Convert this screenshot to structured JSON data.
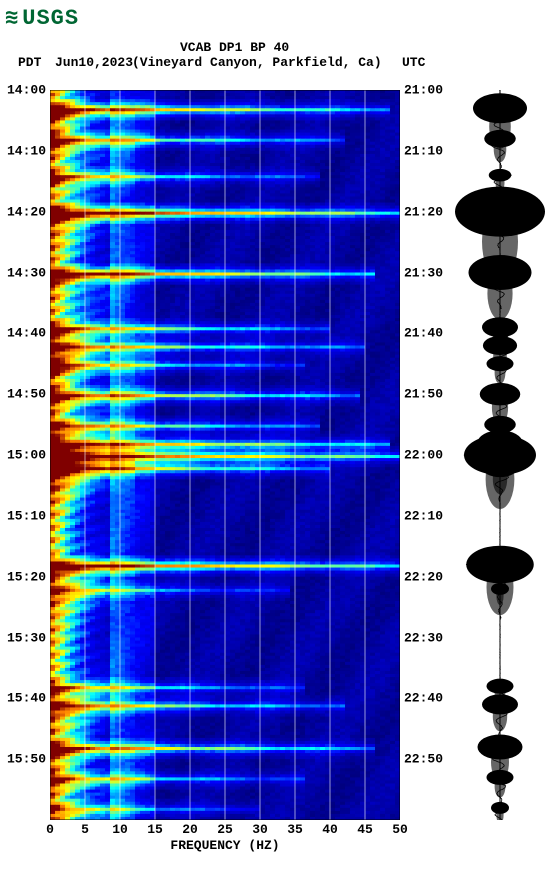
{
  "logo": {
    "text": "USGS"
  },
  "titles": {
    "line1": "VCAB DP1 BP 40",
    "line2_left": "PDT",
    "line2_date": "Jun10,2023",
    "line2_loc": "(Vineyard Canyon, Parkfield, Ca)",
    "line2_right": "UTC"
  },
  "spectrogram": {
    "type": "spectrogram",
    "xlabel": "FREQUENCY (HZ)",
    "xlim": [
      0,
      50
    ],
    "xticks": [
      0,
      5,
      10,
      15,
      20,
      25,
      30,
      35,
      40,
      45,
      50
    ],
    "time_range_min": 120,
    "left_labels": [
      "14:00",
      "14:10",
      "14:20",
      "14:30",
      "14:40",
      "14:50",
      "15:00",
      "15:10",
      "15:20",
      "15:30",
      "15:40",
      "15:50"
    ],
    "right_labels": [
      "21:00",
      "21:10",
      "21:20",
      "21:30",
      "21:40",
      "21:50",
      "22:00",
      "22:10",
      "22:20",
      "22:30",
      "22:40",
      "22:50"
    ],
    "label_positions_min": [
      0,
      10,
      20,
      30,
      40,
      50,
      60,
      70,
      80,
      90,
      100,
      110
    ],
    "events": [
      {
        "t": 3,
        "freq_max": 48,
        "intensity": 0.8
      },
      {
        "t": 8,
        "freq_max": 42,
        "intensity": 0.6
      },
      {
        "t": 14,
        "freq_max": 38,
        "intensity": 0.5
      },
      {
        "t": 20,
        "freq_max": 50,
        "intensity": 1.0
      },
      {
        "t": 30,
        "freq_max": 46,
        "intensity": 0.9
      },
      {
        "t": 39,
        "freq_max": 40,
        "intensity": 0.6
      },
      {
        "t": 42,
        "freq_max": 45,
        "intensity": 0.6
      },
      {
        "t": 45,
        "freq_max": 36,
        "intensity": 0.5
      },
      {
        "t": 50,
        "freq_max": 44,
        "intensity": 0.7
      },
      {
        "t": 55,
        "freq_max": 38,
        "intensity": 0.6
      },
      {
        "t": 58,
        "freq_max": 48,
        "intensity": 0.8
      },
      {
        "t": 60,
        "freq_max": 50,
        "intensity": 0.95
      },
      {
        "t": 62,
        "freq_max": 40,
        "intensity": 0.7
      },
      {
        "t": 78,
        "freq_max": 50,
        "intensity": 0.95
      },
      {
        "t": 82,
        "freq_max": 34,
        "intensity": 0.4
      },
      {
        "t": 98,
        "freq_max": 36,
        "intensity": 0.5
      },
      {
        "t": 101,
        "freq_max": 42,
        "intensity": 0.6
      },
      {
        "t": 108,
        "freq_max": 46,
        "intensity": 0.7
      },
      {
        "t": 113,
        "freq_max": 36,
        "intensity": 0.5
      },
      {
        "t": 118,
        "freq_max": 30,
        "intensity": 0.4
      }
    ],
    "colormap": {
      "stops": [
        {
          "v": 0,
          "c": "#000080"
        },
        {
          "v": 0.2,
          "c": "#0000ff"
        },
        {
          "v": 0.4,
          "c": "#00ffff"
        },
        {
          "v": 0.6,
          "c": "#ffff00"
        },
        {
          "v": 0.8,
          "c": "#ff8000"
        },
        {
          "v": 1.0,
          "c": "#800000"
        }
      ]
    },
    "background_color": "#ffffff",
    "grid_color": "#ffffff",
    "label_fontsize": 13,
    "title_fontsize": 13
  },
  "seismogram": {
    "type": "waveform",
    "color": "#000000",
    "events": [
      {
        "t": 3,
        "amp": 0.6
      },
      {
        "t": 8,
        "amp": 0.35
      },
      {
        "t": 14,
        "amp": 0.25
      },
      {
        "t": 20,
        "amp": 1.0
      },
      {
        "t": 30,
        "amp": 0.7
      },
      {
        "t": 39,
        "amp": 0.4
      },
      {
        "t": 42,
        "amp": 0.38
      },
      {
        "t": 45,
        "amp": 0.3
      },
      {
        "t": 50,
        "amp": 0.45
      },
      {
        "t": 55,
        "amp": 0.35
      },
      {
        "t": 58,
        "amp": 0.5
      },
      {
        "t": 60,
        "amp": 0.8
      },
      {
        "t": 62,
        "amp": 0.4
      },
      {
        "t": 78,
        "amp": 0.75
      },
      {
        "t": 82,
        "amp": 0.2
      },
      {
        "t": 98,
        "amp": 0.3
      },
      {
        "t": 101,
        "amp": 0.4
      },
      {
        "t": 108,
        "amp": 0.5
      },
      {
        "t": 113,
        "amp": 0.3
      },
      {
        "t": 118,
        "amp": 0.2
      }
    ]
  }
}
